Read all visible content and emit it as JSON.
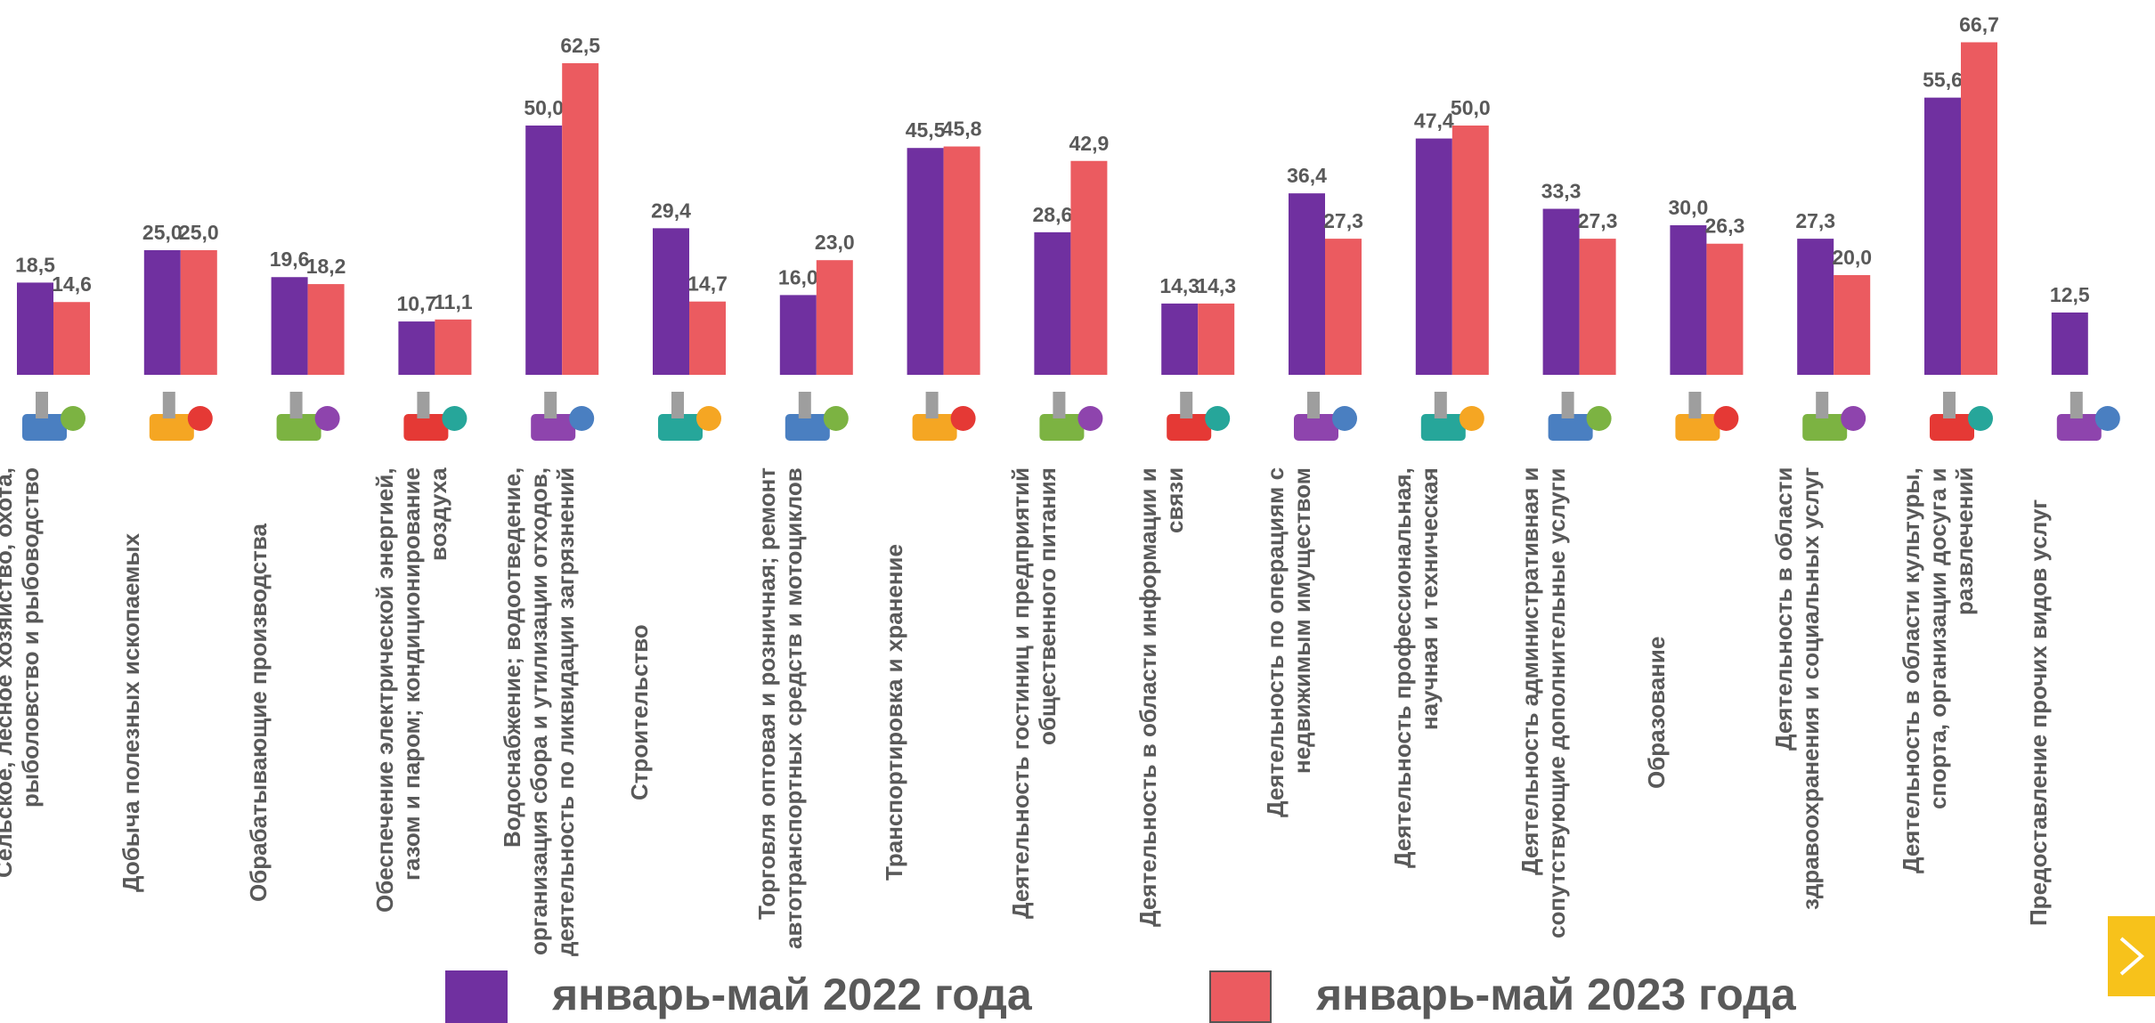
{
  "chart_data": {
    "type": "bar",
    "categories": [
      "Сельское, лесное хозяйство, охота, рыболовство и рыбоводство",
      "Добыча полезных ископаемых",
      "Обрабатывающие производства",
      "Обеспечение электрической энергией, газом и паром; кондиционирование воздуха",
      "Водоснабжение; водоотведение, организация сбора и утилизации отходов, деятельность по ликвидации загрязнений",
      "Строительство",
      "Торговля оптовая и розничная; ремонт автотранспортных средств и мотоциклов",
      "Транспортировка и хранение",
      "Деятельность гостиниц и предприятий общественного питания",
      "Деятельность в области информации и связи",
      "Деятельность по операциям с недвижимым имуществом",
      "Деятельность профессиональная, научная и техническая",
      "Деятельность административная и сопутствующие дополнительные услуги",
      "Образование",
      "Деятельность в области здравоохранения и социальных услуг",
      "Деятельность в области культуры, спорта, организации досуга и развлечений",
      "Предоставление прочих видов услуг"
    ],
    "series": [
      {
        "name": "январь-май 2022 года",
        "color": "#7030a0",
        "values": [
          18.5,
          25.0,
          19.6,
          10.7,
          50.0,
          29.4,
          16.0,
          45.5,
          28.6,
          14.3,
          36.4,
          47.4,
          33.3,
          30.0,
          27.3,
          55.6,
          12.5
        ],
        "value_labels": [
          "18,5",
          "25,0",
          "19,6",
          "10,7",
          "50,0",
          "29,4",
          "16,0",
          "45,5",
          "28,6",
          "14,3",
          "36,4",
          "47,4",
          "33,3",
          "30,0",
          "27,3",
          "55,6",
          "12,5"
        ]
      },
      {
        "name": "январь-май 2023 года",
        "color": "#eb5b60",
        "values": [
          14.6,
          25.0,
          18.2,
          11.1,
          62.5,
          14.7,
          23.0,
          45.8,
          42.9,
          14.3,
          27.3,
          50.0,
          27.3,
          26.3,
          20.0,
          66.7,
          null
        ],
        "value_labels": [
          "14,6",
          "25,0",
          "18,2",
          "11,1",
          "62,5",
          "14,7",
          "23,0",
          "45,8",
          "42,9",
          "14,3",
          "27,3",
          "50,0",
          "27,3",
          "26,3",
          "20,0",
          "66,7",
          null
        ]
      }
    ]
  }
}
